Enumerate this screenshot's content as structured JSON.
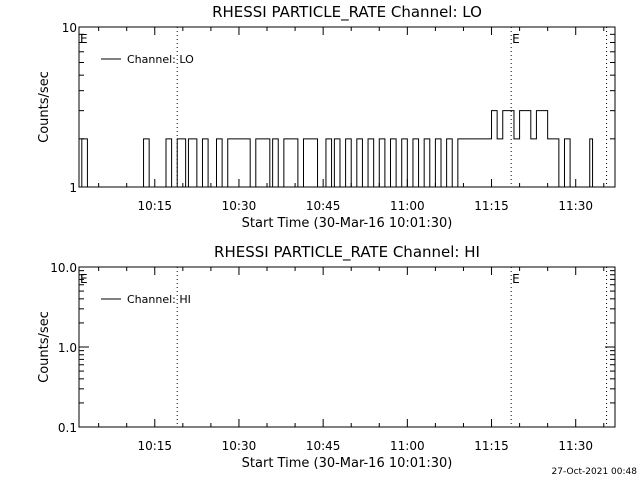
{
  "footer": "27-Oct-2021 00:48",
  "chart_data": [
    {
      "type": "line",
      "title": "RHESSI PARTICLE_RATE Channel: LO",
      "xlabel": "Start Time (30-Mar-16 10:01:30)",
      "ylabel": "Counts/sec",
      "y_scale": "log",
      "ylim": [
        1,
        10
      ],
      "y_ticks": [
        "1",
        "10"
      ],
      "xlim": [
        "10:01:30",
        "11:37:00"
      ],
      "x_ticks": [
        "10:15",
        "10:30",
        "10:45",
        "11:00",
        "11:15",
        "11:30"
      ],
      "legend": {
        "entries": [
          "Channel: LO"
        ],
        "placement": "top-left"
      },
      "event_markers": [
        {
          "time": "10:01:30",
          "label": "E",
          "line": false
        },
        {
          "time": "10:19:00",
          "label": "",
          "line": true
        },
        {
          "time": "11:18:30",
          "label": "E",
          "line": true
        },
        {
          "time": "11:35:30",
          "label": "",
          "line": true
        }
      ],
      "series": [
        {
          "name": "Channel: LO",
          "x": [
            "10:01:30",
            "10:02:00",
            "10:02:30",
            "10:03:00",
            "10:12:30",
            "10:13:00",
            "10:13:30",
            "10:14:00",
            "10:16:30",
            "10:17:00",
            "10:18:00",
            "10:19:00",
            "10:20:30",
            "10:21:00",
            "10:22:00",
            "10:22:30",
            "10:23:30",
            "10:24:00",
            "10:24:30",
            "10:26:00",
            "10:27:00",
            "10:28:00",
            "10:29:30",
            "10:31:00",
            "10:32:00",
            "10:33:00",
            "10:34:30",
            "10:35:30",
            "10:36:00",
            "10:37:00",
            "10:38:00",
            "10:39:30",
            "10:40:30",
            "10:41:30",
            "10:42:30",
            "10:44:00",
            "10:45:30",
            "10:46:30",
            "10:47:00",
            "10:48:00",
            "10:49:00",
            "10:50:00",
            "10:51:00",
            "10:52:00",
            "10:53:00",
            "10:54:00",
            "10:55:00",
            "10:56:00",
            "10:57:00",
            "10:58:00",
            "10:59:00",
            "11:00:00",
            "11:01:00",
            "11:02:00",
            "11:03:00",
            "11:04:00",
            "11:05:00",
            "11:06:00",
            "11:07:00",
            "11:08:00",
            "11:09:00",
            "11:11:00",
            "11:13:00",
            "11:14:00",
            "11:15:00",
            "11:16:00",
            "11:17:00",
            "11:18:00",
            "11:19:00",
            "11:20:00",
            "11:21:00",
            "11:22:00",
            "11:23:00",
            "11:24:00",
            "11:25:00",
            "11:26:00",
            "11:27:00",
            "11:28:00",
            "11:29:00",
            "11:32:00",
            "11:32:30",
            "11:33:00"
          ],
          "y": [
            1,
            2,
            2,
            1,
            1,
            2,
            2,
            1,
            1,
            2,
            1,
            2,
            1,
            2,
            2,
            1,
            2,
            2,
            1,
            2,
            1,
            2,
            2,
            2,
            1,
            2,
            2,
            1,
            2,
            1,
            2,
            2,
            1,
            2,
            2,
            1,
            2,
            1,
            2,
            1,
            2,
            1,
            2,
            1,
            2,
            1,
            2,
            1,
            2,
            1,
            2,
            1,
            2,
            1,
            2,
            1,
            2,
            1,
            2,
            1,
            2,
            2,
            2,
            2,
            3,
            2,
            3,
            3,
            2,
            3,
            3,
            2,
            3,
            3,
            2,
            2,
            1,
            2,
            1,
            1,
            2,
            1
          ]
        }
      ]
    },
    {
      "type": "line",
      "title": "RHESSI PARTICLE_RATE Channel: HI",
      "xlabel": "Start Time (30-Mar-16 10:01:30)",
      "ylabel": "Counts/sec",
      "y_scale": "log",
      "ylim": [
        0.1,
        10
      ],
      "y_ticks": [
        "0.1",
        "1.0",
        "10.0"
      ],
      "xlim": [
        "10:01:30",
        "11:37:00"
      ],
      "x_ticks": [
        "10:15",
        "10:30",
        "10:45",
        "11:00",
        "11:15",
        "11:30"
      ],
      "legend": {
        "entries": [
          "Channel: HI"
        ],
        "placement": "top-left"
      },
      "event_markers": [
        {
          "time": "10:01:30",
          "label": "E",
          "line": false
        },
        {
          "time": "10:19:00",
          "label": "",
          "line": true
        },
        {
          "time": "11:18:30",
          "label": "E",
          "line": true
        },
        {
          "time": "11:35:30",
          "label": "",
          "line": true
        }
      ],
      "series": [
        {
          "name": "Channel: HI",
          "x": [],
          "y": []
        }
      ]
    }
  ]
}
